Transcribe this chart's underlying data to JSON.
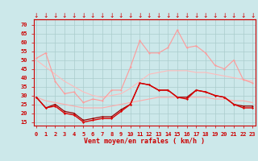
{
  "x": [
    0,
    1,
    2,
    3,
    4,
    5,
    6,
    7,
    8,
    9,
    10,
    11,
    12,
    13,
    14,
    15,
    16,
    17,
    18,
    19,
    20,
    21,
    22,
    23
  ],
  "line_gust_max": [
    51,
    54,
    38,
    31,
    32,
    26,
    28,
    27,
    33,
    33,
    46,
    61,
    54,
    54,
    57,
    67,
    57,
    58,
    54,
    47,
    45,
    50,
    39,
    37
  ],
  "line_avg_max": [
    50,
    46,
    42,
    38,
    35,
    32,
    30,
    29,
    30,
    31,
    34,
    38,
    42,
    43,
    44,
    44,
    44,
    43,
    43,
    42,
    41,
    40,
    39,
    38
  ],
  "line_avg_mid": [
    29,
    27,
    26,
    25,
    24,
    23,
    23,
    23,
    24,
    25,
    26,
    27,
    28,
    29,
    29,
    29,
    29,
    29,
    29,
    28,
    28,
    27,
    27,
    26
  ],
  "line_mean_wind": [
    29,
    23,
    24,
    20,
    19,
    15,
    16,
    17,
    17,
    21,
    25,
    37,
    36,
    33,
    33,
    29,
    28,
    33,
    32,
    30,
    29,
    25,
    23,
    23
  ],
  "line_mean2": [
    29,
    23,
    25,
    21,
    20,
    16,
    17,
    18,
    18,
    22,
    25,
    37,
    36,
    33,
    33,
    29,
    29,
    33,
    32,
    30,
    29,
    25,
    24,
    24
  ],
  "background": "#cce8ea",
  "grid_color": "#aacccc",
  "color_gust_max": "#ff9999",
  "color_avg_max": "#ffbbbb",
  "color_avg_mid": "#ffaaaa",
  "color_mean_wind": "#dd0000",
  "color_mean2": "#990000",
  "xlabel": "Vent moyen/en rafales ( km/h )",
  "yticks": [
    15,
    20,
    25,
    30,
    35,
    40,
    45,
    50,
    55,
    60,
    65,
    70
  ],
  "ylim": [
    13,
    73
  ],
  "xlim": [
    -0.3,
    23.3
  ]
}
